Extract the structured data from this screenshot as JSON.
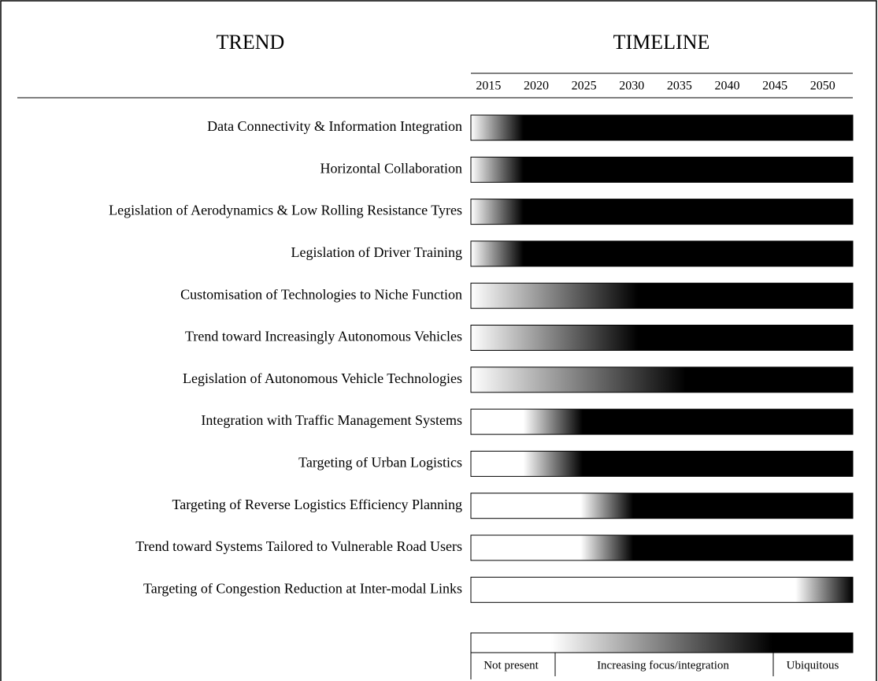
{
  "header": {
    "left": "TREND",
    "right": "TIMELINE"
  },
  "timeline": {
    "xlim": [
      2015,
      2055
    ],
    "years": [
      2015,
      2020,
      2025,
      2030,
      2035,
      2040,
      2045,
      2050
    ]
  },
  "rows": [
    {
      "label": "Data Connectivity & Information Integration",
      "start": 2015,
      "end": 2020.5
    },
    {
      "label": "Horizontal Collaboration",
      "start": 2015,
      "end": 2020.5
    },
    {
      "label": "Legislation of Aerodynamics & Low Rolling Resistance Tyres",
      "start": 2015,
      "end": 2020.5
    },
    {
      "label": "Legislation of Driver Training",
      "start": 2015,
      "end": 2020.5
    },
    {
      "label": "Customisation of Technologies to Niche Function",
      "start": 2015,
      "end": 2032.5
    },
    {
      "label": "Trend toward Increasingly Autonomous Vehicles",
      "start": 2015,
      "end": 2032.5
    },
    {
      "label": "Legislation of Autonomous Vehicle Technologies",
      "start": 2015,
      "end": 2037.5
    },
    {
      "label": "Integration with Traffic Management Systems",
      "start": 2020.5,
      "end": 2026.7
    },
    {
      "label": "Targeting of Urban Logistics",
      "start": 2020.5,
      "end": 2026.7
    },
    {
      "label": "Targeting of Reverse Logistics Efficiency Planning",
      "start": 2026.5,
      "end": 2032
    },
    {
      "label": "Trend toward Systems Tailored to Vulnerable Road Users",
      "start": 2026.5,
      "end": 2032
    },
    {
      "label": "Targeting of Congestion Reduction at Inter-modal Links",
      "start": 2049,
      "end": 2055
    }
  ],
  "legend": {
    "labels": [
      "Not present",
      "Increasing focus/integration",
      "Ubiquitous"
    ]
  }
}
